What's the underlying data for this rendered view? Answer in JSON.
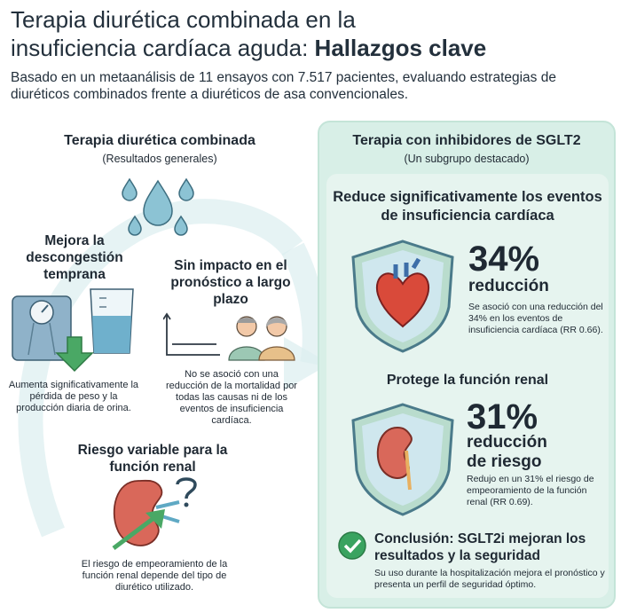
{
  "header": {
    "title_line1": "Terapia diurética combinada en la",
    "title_line2_regular": "insuficiencia cardíaca aguda: ",
    "title_line2_bold": "Hallazgos clave",
    "subtitle": "Basado en un metaanálisis de 11 ensayos con 7.517 pacientes, evaluando estrategias de diuréticos combinados frente a diuréticos de asa convencionales."
  },
  "left": {
    "title": "Terapia diurética combinada",
    "subtitle": "(Resultados generales)",
    "decongestion": {
      "title": "Mejora la descongestión temprana",
      "text": "Aumenta significativamente la pérdida de peso y la producción diaria de orina."
    },
    "prognosis": {
      "title": "Sin impacto en el pronóstico a largo plazo",
      "text": "No se asoció con una reducción de la mortalidad por todas las causas ni de los eventos de insuficiencia cardíaca."
    },
    "renal": {
      "title": "Riesgo variable para la función renal",
      "text": "El riesgo de empeoramiento de la función renal depende del tipo de diurético utilizado."
    }
  },
  "right": {
    "title": "Terapia con inhibidores de SGLT2",
    "subtitle": "(Un subgrupo destacado)",
    "hf": {
      "title": "Reduce significativamente los eventos de insuficiencia cardíaca",
      "percent": "34%",
      "label": "reducción",
      "text": "Se asoció con una reducción del 34% en los eventos de insuficiencia cardíaca (RR 0.66)."
    },
    "renal": {
      "title": "Protege la función renal",
      "percent": "31%",
      "label": "reducción de riesgo",
      "text": "Redujo en un 31% el riesgo de empeoramiento de la función renal (RR 0.69)."
    },
    "conclusion": {
      "title": "Conclusión: SGLT2i mejoran los resultados y la seguridad",
      "text": "Su uso durante la hospitalización mejora el pronóstico y presenta un perfil de seguridad óptimo."
    }
  },
  "icons": [
    "water-drops-icon",
    "scale-icon",
    "beaker-icon",
    "down-arrow-icon",
    "chart-icon",
    "people-icon",
    "kidney-icon",
    "question-icon",
    "heart-shield-icon",
    "kidney-shield-icon",
    "checkmark-icon"
  ],
  "colors": {
    "panel": "#d8efe7",
    "accent": "#2f9e5c",
    "drop": "#7fb7c9",
    "heart": "#d94a3a",
    "kidney": "#c9594a"
  }
}
